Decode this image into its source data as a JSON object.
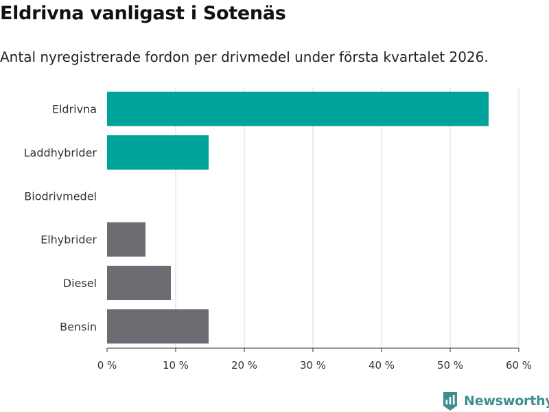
{
  "header": {
    "title": "Eldrivna vanligast i Sotenäs",
    "subtitle": "Antal nyregistrerade fordon per drivmedel under första kvartalet 2026."
  },
  "chart_data": {
    "type": "bar",
    "orientation": "horizontal",
    "title": "Eldrivna vanligast i Sotenäs",
    "subtitle": "Antal nyregistrerade fordon per drivmedel under första kvartalet 2026.",
    "xlabel": "",
    "ylabel": "",
    "xlim": [
      0,
      60
    ],
    "x_ticks": [
      0,
      10,
      20,
      30,
      40,
      50,
      60
    ],
    "x_tick_labels": [
      "0 %",
      "10 %",
      "20 %",
      "30 %",
      "40 %",
      "50 %",
      "60 %"
    ],
    "grid": true,
    "categories": [
      "Eldrivna",
      "Laddhybrider",
      "Biodrivmedel",
      "Elhybrider",
      "Diesel",
      "Bensin"
    ],
    "values": [
      55.6,
      14.8,
      0,
      5.6,
      9.3,
      14.8
    ],
    "unit": "%",
    "colors": [
      "#00a39a",
      "#00a39a",
      "#00a39a",
      "#6b6b72",
      "#6b6b72",
      "#6b6b72"
    ]
  },
  "colors": {
    "highlight": "#00a39a",
    "muted": "#6b6b72",
    "grid": "#d9d9d9",
    "axis": "#333333",
    "brand": "#3e8e8d"
  },
  "branding": {
    "name": "Newsworthy",
    "icon": "newsworthy-logo-icon"
  }
}
